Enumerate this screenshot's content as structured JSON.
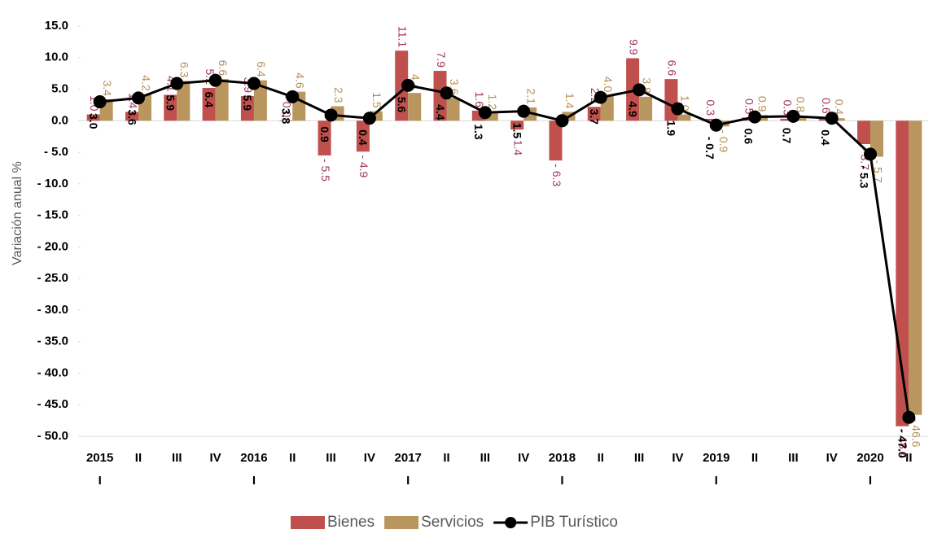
{
  "chart_data": {
    "type": "bar_line",
    "y_label": "Variación anual %",
    "categories": [
      [
        "2015",
        "I"
      ],
      [
        "II"
      ],
      [
        "III"
      ],
      [
        "IV"
      ],
      [
        "2016",
        "I"
      ],
      [
        "II"
      ],
      [
        "III"
      ],
      [
        "IV"
      ],
      [
        "2017",
        "I"
      ],
      [
        "II"
      ],
      [
        "III"
      ],
      [
        "IV"
      ],
      [
        "2018",
        "I"
      ],
      [
        "II"
      ],
      [
        "III"
      ],
      [
        "IV"
      ],
      [
        "2019",
        "I"
      ],
      [
        "II"
      ],
      [
        "III"
      ],
      [
        "IV"
      ],
      [
        "2020",
        "I"
      ],
      [
        "II"
      ]
    ],
    "series": [
      {
        "name": "Bienes",
        "type": "bar",
        "color": "#c0504d",
        "label_color": "#a0365e",
        "values": [
          1.0,
          1.4,
          4.1,
          5.2,
          3.9,
          -0.0,
          -5.5,
          -4.9,
          11.1,
          7.9,
          1.6,
          -1.4,
          -6.3,
          2.2,
          9.9,
          6.6,
          0.3,
          0.5,
          0.3,
          0.6,
          -3.7,
          -48.4
        ],
        "value_labels": [
          "1.0",
          "1.4",
          "4.1",
          "5.2",
          "3.9",
          "- 0.0",
          "- 5.5",
          "- 4.9",
          "11.1",
          "7.9",
          "1.6",
          "- 1.4",
          "- 6.3",
          "2.2",
          "9.9",
          "6.6",
          "0.3",
          "0.5",
          "0.3",
          "0.6",
          "- 3.7",
          "- 48.4"
        ]
      },
      {
        "name": "Servicios",
        "type": "bar",
        "color": "#b9965e",
        "label_color": "#b48f55",
        "values": [
          3.4,
          4.2,
          6.3,
          6.6,
          6.4,
          4.6,
          2.3,
          1.5,
          4.4,
          3.6,
          1.2,
          2.1,
          1.4,
          4.0,
          3.8,
          1.0,
          -0.9,
          0.9,
          0.8,
          0.4,
          -5.7,
          -46.6
        ],
        "value_labels": [
          "3.4",
          "4.2",
          "6.3",
          "6.6",
          "6.4",
          "4.6",
          "2.3",
          "1.5",
          "4.4",
          "3.6",
          "1.2",
          "2.1",
          "1.4",
          "4.0",
          "3.8",
          "1.0",
          "- 0.9",
          "0.9",
          "0.8",
          "0.4",
          "- 5.7",
          "- 46.6"
        ]
      },
      {
        "name": "PIB Turístico",
        "type": "line",
        "color": "#000000",
        "label_color": "#000000",
        "values": [
          3.0,
          3.6,
          5.9,
          6.4,
          5.9,
          3.8,
          0.9,
          0.4,
          5.6,
          4.4,
          1.3,
          1.5,
          0.0,
          3.7,
          4.9,
          1.9,
          -0.7,
          0.6,
          0.7,
          0.4,
          -5.3,
          -47.0
        ],
        "value_labels": [
          "3.0",
          "3.6",
          "5.9",
          "6.4",
          "5.9",
          "3.8",
          "0.9",
          "0.4",
          "5.6",
          "4.4",
          "1.3",
          "1.5",
          null,
          "3.7",
          "4.9",
          "1.9",
          "- 0.7",
          "0.6",
          "0.7",
          "0.4",
          "- 5.3",
          "- 47.0"
        ]
      }
    ],
    "ylim": [
      -50,
      15
    ],
    "yticks": [
      {
        "value": 15,
        "label": "15.0"
      },
      {
        "value": 10,
        "label": "10.0"
      },
      {
        "value": 5,
        "label": "5.0"
      },
      {
        "value": 0,
        "label": "0.0"
      },
      {
        "value": -5,
        "label": "- 5.0"
      },
      {
        "value": -10,
        "label": "- 10.0"
      },
      {
        "value": -15,
        "label": "- 15.0"
      },
      {
        "value": -20,
        "label": "- 20.0"
      },
      {
        "value": -25,
        "label": "- 25.0"
      },
      {
        "value": -30,
        "label": "- 30.0"
      },
      {
        "value": -35,
        "label": "- 35.0"
      },
      {
        "value": -40,
        "label": "- 40.0"
      },
      {
        "value": -45,
        "label": "- 45.0"
      },
      {
        "value": -50,
        "label": "- 50.0"
      }
    ],
    "legend": "bottom"
  }
}
